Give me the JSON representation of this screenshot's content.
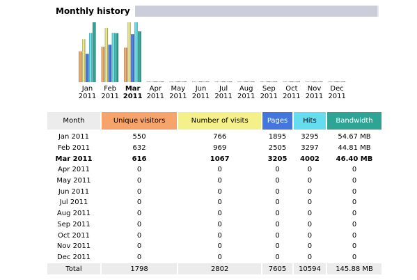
{
  "section_title": "Monthly history",
  "colors": {
    "unique_visitors": "#f6a46a",
    "visits": "#f4f08a",
    "pages": "#4477dd",
    "hits": "#66ddee",
    "bandwidth": "#2ea495"
  },
  "table": {
    "headers": {
      "month": "Month",
      "unique_visitors": "Unique visitors",
      "visits": "Number of visits",
      "pages": "Pages",
      "hits": "Hits",
      "bandwidth": "Bandwidth"
    },
    "rows": [
      {
        "month": "Jan 2011",
        "uv": "550",
        "visits": "766",
        "pages": "1895",
        "hits": "3295",
        "bw": "54.67 MB",
        "current": false
      },
      {
        "month": "Feb 2011",
        "uv": "632",
        "visits": "969",
        "pages": "2505",
        "hits": "3297",
        "bw": "44.81 MB",
        "current": false
      },
      {
        "month": "Mar 2011",
        "uv": "616",
        "visits": "1067",
        "pages": "3205",
        "hits": "4002",
        "bw": "46.40 MB",
        "current": true
      },
      {
        "month": "Apr 2011",
        "uv": "0",
        "visits": "0",
        "pages": "0",
        "hits": "0",
        "bw": "0",
        "current": false
      },
      {
        "month": "May 2011",
        "uv": "0",
        "visits": "0",
        "pages": "0",
        "hits": "0",
        "bw": "0",
        "current": false
      },
      {
        "month": "Jun 2011",
        "uv": "0",
        "visits": "0",
        "pages": "0",
        "hits": "0",
        "bw": "0",
        "current": false
      },
      {
        "month": "Jul 2011",
        "uv": "0",
        "visits": "0",
        "pages": "0",
        "hits": "0",
        "bw": "0",
        "current": false
      },
      {
        "month": "Aug 2011",
        "uv": "0",
        "visits": "0",
        "pages": "0",
        "hits": "0",
        "bw": "0",
        "current": false
      },
      {
        "month": "Sep 2011",
        "uv": "0",
        "visits": "0",
        "pages": "0",
        "hits": "0",
        "bw": "0",
        "current": false
      },
      {
        "month": "Oct 2011",
        "uv": "0",
        "visits": "0",
        "pages": "0",
        "hits": "0",
        "bw": "0",
        "current": false
      },
      {
        "month": "Nov 2011",
        "uv": "0",
        "visits": "0",
        "pages": "0",
        "hits": "0",
        "bw": "0",
        "current": false
      },
      {
        "month": "Dec 2011",
        "uv": "0",
        "visits": "0",
        "pages": "0",
        "hits": "0",
        "bw": "0",
        "current": false
      }
    ],
    "total": {
      "label": "Total",
      "uv": "1798",
      "visits": "2802",
      "pages": "7605",
      "hits": "10594",
      "bw": "145.88 MB"
    }
  },
  "chart_data": {
    "type": "bar",
    "categories": [
      {
        "month": "Jan",
        "year": "2011",
        "bold": false
      },
      {
        "month": "Feb",
        "year": "2011",
        "bold": false
      },
      {
        "month": "Mar",
        "year": "2011",
        "bold": true
      },
      {
        "month": "Apr",
        "year": "2011",
        "bold": false
      },
      {
        "month": "May",
        "year": "2011",
        "bold": false
      },
      {
        "month": "Jun",
        "year": "2011",
        "bold": false
      },
      {
        "month": "Jul",
        "year": "2011",
        "bold": false
      },
      {
        "month": "Aug",
        "year": "2011",
        "bold": false
      },
      {
        "month": "Sep",
        "year": "2011",
        "bold": false
      },
      {
        "month": "Oct",
        "year": "2011",
        "bold": false
      },
      {
        "month": "Nov",
        "year": "2011",
        "bold": false
      },
      {
        "month": "Dec",
        "year": "2011",
        "bold": false
      }
    ],
    "series": [
      {
        "name": "Unique visitors",
        "key": "unique_visitors",
        "values": [
          550,
          632,
          616,
          0,
          0,
          0,
          0,
          0,
          0,
          0,
          0,
          0
        ]
      },
      {
        "name": "Number of visits",
        "key": "visits",
        "values": [
          766,
          969,
          1067,
          0,
          0,
          0,
          0,
          0,
          0,
          0,
          0,
          0
        ]
      },
      {
        "name": "Pages",
        "key": "pages",
        "values": [
          1895,
          2505,
          3205,
          0,
          0,
          0,
          0,
          0,
          0,
          0,
          0,
          0
        ]
      },
      {
        "name": "Hits",
        "key": "hits",
        "values": [
          3295,
          3297,
          4002,
          0,
          0,
          0,
          0,
          0,
          0,
          0,
          0,
          0
        ]
      },
      {
        "name": "Bandwidth",
        "key": "bandwidth",
        "values": [
          54.67,
          44.81,
          46.4,
          0,
          0,
          0,
          0,
          0,
          0,
          0,
          0,
          0
        ]
      }
    ],
    "scale_groups": [
      [
        "unique_visitors",
        "visits"
      ],
      [
        "pages",
        "hits"
      ],
      [
        "bandwidth"
      ]
    ],
    "legend": "none",
    "grid": false
  }
}
